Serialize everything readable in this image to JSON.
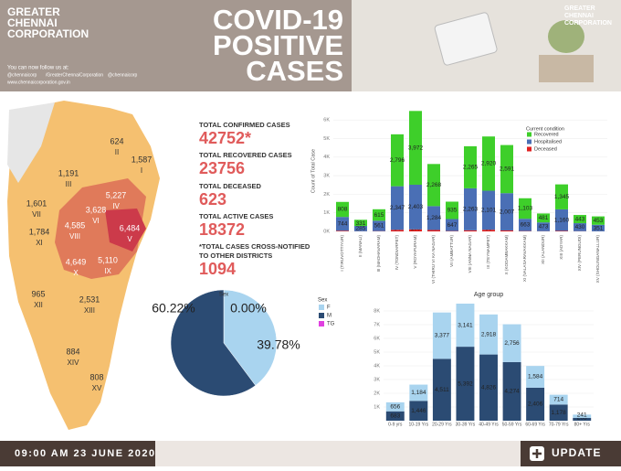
{
  "header": {
    "logo_lines": [
      "GREATER",
      "CHENNAI",
      "CORPORATION"
    ],
    "title_lines": [
      "COVID-19",
      "POSITIVE",
      "CASES"
    ],
    "follow": "You can now follow us at:",
    "socials": [
      "@chennaicorp",
      "/GreaterChennaiCorporation",
      "@chennaicorp"
    ],
    "website": "www.chennaicorporation.gov.in",
    "corner_logo_lines": [
      "GREATER",
      "CHENNAI",
      "CORPORATION"
    ]
  },
  "stats": [
    {
      "label": [
        "TOTAL CONFIRMED CASES"
      ],
      "value": "42752*"
    },
    {
      "label": [
        "TOTAL RECOVERED CASES"
      ],
      "value": "23756"
    },
    {
      "label": [
        "TOTAL DECEASED"
      ],
      "value": "623"
    },
    {
      "label": [
        "TOTAL ACTIVE CASES"
      ],
      "value": "18372"
    },
    {
      "label": [
        "*TOTAL CASES CROSS-NOTIFIED",
        "TO OTHER DISTRICTS"
      ],
      "value": "1094"
    }
  ],
  "map": {
    "zones": [
      {
        "cases": "1,587",
        "zone": "I"
      },
      {
        "cases": "624",
        "zone": "II"
      },
      {
        "cases": "1,191",
        "zone": "III"
      },
      {
        "cases": "5,227",
        "zone": "IV"
      },
      {
        "cases": "6,484",
        "zone": "V"
      },
      {
        "cases": "3,628",
        "zone": "VI"
      },
      {
        "cases": "1,601",
        "zone": "VII"
      },
      {
        "cases": "4,585",
        "zone": "VIII"
      },
      {
        "cases": "5,110",
        "zone": "IX"
      },
      {
        "cases": "4,649",
        "zone": "X"
      },
      {
        "cases": "1,784",
        "zone": "XI"
      },
      {
        "cases": "965",
        "zone": "XII"
      },
      {
        "cases": "2,531",
        "zone": "XIII"
      },
      {
        "cases": "884",
        "zone": "XIV"
      },
      {
        "cases": "808",
        "zone": "XV"
      }
    ]
  },
  "chart_data": [
    {
      "type": "bar",
      "stacked": true,
      "y_label": "Count of Total Case",
      "legend_title": "Current condition",
      "categories": [
        "I (TIRUVOTTIYUR)",
        "II (MANALI)",
        "III (MADHAVARAM)",
        "IV (TONDIARPET)",
        "V (ROYAPURAM)",
        "VI (THIRU VI KA NAGAR)",
        "VII (AMBATTUR)",
        "VIII (ANNA NAGAR)",
        "IX (TEYNAMPET)",
        "X (KODAMBAKKAM)",
        "XI (VALASARAVAKKAM)",
        "XII (ALANDUR)",
        "XIII (ADYAR)",
        "XIV (PERUNGUDI)",
        "XV (SHOLINGANALLUR)"
      ],
      "series": [
        {
          "name": "Recovered",
          "color": "#3ecf2a",
          "values": [
            808,
            331,
            615,
            2796,
            3972,
            2268,
            935,
            2265,
            2920,
            2591,
            1103,
            481,
            1345,
            443,
            453
          ],
          "value_labels": [
            "808",
            "331",
            "615",
            "2,796",
            "3,972",
            "2,268",
            "935",
            "2,265",
            "2,920",
            "2,591",
            "1,103",
            "481",
            "1,345",
            "443",
            "453"
          ]
        },
        {
          "name": "Hospitalised",
          "color": "#4a6fb5",
          "values": [
            744,
            285,
            561,
            2347,
            2403,
            1284,
            647,
            2263,
            2101,
            2007,
            663,
            473,
            1160,
            430,
            351
          ],
          "value_labels": [
            "744",
            "285",
            "561",
            "2,347",
            "2,403",
            "1,284",
            "647",
            "2,263",
            "2,101",
            "2,007",
            "663",
            "473",
            "1,160",
            "430",
            "351"
          ]
        },
        {
          "name": "Deceased",
          "color": "#e02020",
          "values": [
            35,
            8,
            15,
            84,
            109,
            76,
            19,
            57,
            89,
            51,
            18,
            11,
            26,
            11,
            4
          ]
        }
      ],
      "ylim": [
        0,
        6500
      ],
      "yticks": [
        {
          "value": 0,
          "label": "0K"
        },
        {
          "value": 1000,
          "label": "1K"
        },
        {
          "value": 2000,
          "label": "2K"
        },
        {
          "value": 3000,
          "label": "3K"
        },
        {
          "value": 4000,
          "label": "4K"
        },
        {
          "value": 5000,
          "label": "5K"
        },
        {
          "value": 6000,
          "label": "6K"
        }
      ],
      "grid": true
    },
    {
      "type": "pie",
      "title": "Sex",
      "legend_title": "Sex",
      "categories": [
        "F",
        "M",
        "TG"
      ],
      "values": [
        39.78,
        60.22,
        0
      ],
      "value_labels": [
        "39.78%",
        "60.22%",
        "0.00%"
      ],
      "colors": [
        "#a9d4ef",
        "#2b4b73",
        "#e040e0"
      ]
    },
    {
      "type": "bar",
      "stacked": true,
      "title": "Age group",
      "categories": [
        "0-9 yrs",
        "10-19 Yrs",
        "20-29 Yrs",
        "30-39 Yrs",
        "40-49 Yrs",
        "50-59 Yrs",
        "60-69 Yrs",
        "70-79 Yrs",
        "80+ Yrs"
      ],
      "series": [
        {
          "name": "TG",
          "color": "#e040e0",
          "values": [
            null,
            null,
            null,
            1,
            1,
            null,
            null,
            null,
            null
          ]
        },
        {
          "name": "M",
          "color": "#2b4b73",
          "values": [
            683,
            1446,
            4511,
            5392,
            4826,
            4274,
            2406,
            1178,
            203
          ],
          "value_labels": [
            "683",
            "1,446",
            "4,511",
            "5,392",
            "4,826",
            "4,274",
            "2,406",
            "1,178",
            "203"
          ]
        },
        {
          "name": "F",
          "color": "#a9d4ef",
          "values": [
            656,
            1184,
            3377,
            3141,
            2918,
            2756,
            1584,
            714,
            241
          ],
          "value_labels": [
            "656",
            "1,184",
            "3,377",
            "3,141",
            "2,918",
            "2,756",
            "1,584",
            "714",
            "241"
          ]
        }
      ],
      "ylim": [
        0,
        8800
      ],
      "yticks": [
        {
          "value": 1000,
          "label": "1K"
        },
        {
          "value": 2000,
          "label": "2K"
        },
        {
          "value": 3000,
          "label": "3K"
        },
        {
          "value": 4000,
          "label": "4K"
        },
        {
          "value": 5000,
          "label": "5K"
        },
        {
          "value": 6000,
          "label": "6K"
        },
        {
          "value": 7000,
          "label": "7K"
        },
        {
          "value": 8000,
          "label": "8K"
        }
      ],
      "grid": true
    }
  ],
  "footer": {
    "timestamp": "09:00 AM 23 JUNE 2020",
    "button": "UPDATE"
  }
}
